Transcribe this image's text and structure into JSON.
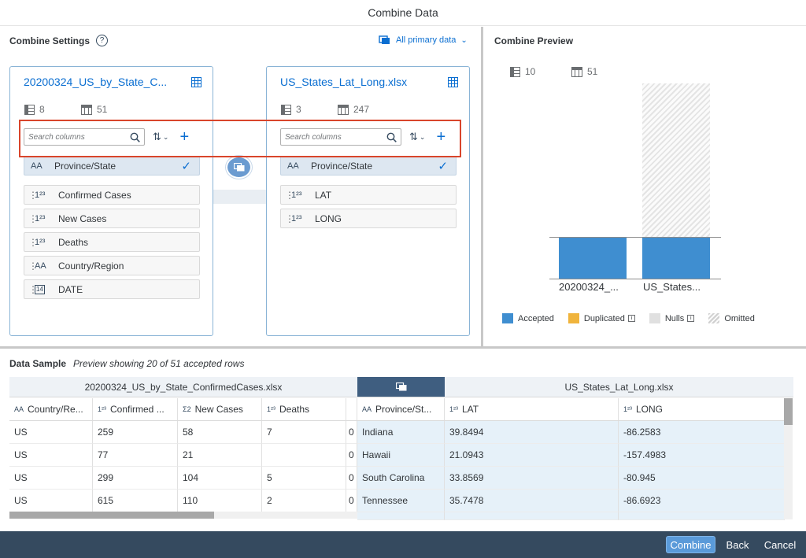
{
  "dialog": {
    "title": "Combine Data"
  },
  "settings": {
    "title": "Combine Settings",
    "help_icon": "question-icon",
    "primary_data_label": "All primary data"
  },
  "left_card": {
    "title": "20200324_US_by_State_C...",
    "dimensions": "8",
    "measures": "51",
    "search_placeholder": "Search columns",
    "columns": [
      {
        "type": "AA",
        "label": "Province/State",
        "selected": true
      },
      {
        "type": "1²³",
        "label": "Confirmed Cases"
      },
      {
        "type": "1²³",
        "label": "New Cases"
      },
      {
        "type": "1²³",
        "label": "Deaths"
      },
      {
        "type": "AA",
        "label": "Country/Region"
      },
      {
        "type": "14",
        "label": "DATE"
      }
    ]
  },
  "right_card": {
    "title": "US_States_Lat_Long.xlsx",
    "dimensions": "3",
    "measures": "247",
    "search_placeholder": "Search columns",
    "columns": [
      {
        "type": "AA",
        "label": "Province/State",
        "selected": true
      },
      {
        "type": "1²³",
        "label": "LAT"
      },
      {
        "type": "1²³",
        "label": "LONG"
      }
    ]
  },
  "preview": {
    "title": "Combine Preview",
    "dimensions": "10",
    "measures": "51",
    "bars": [
      {
        "label": "20200324_...",
        "accepted": 1.0,
        "omitted": 0
      },
      {
        "label": "US_States...",
        "accepted": 0.206,
        "omitted": 0.794
      }
    ],
    "legend": [
      "Accepted",
      "Duplicated",
      "Nulls",
      "Omitted"
    ],
    "colors": {
      "accepted": "#3f8ed0",
      "duplicated": "#f0b43c",
      "nulls": "#e0e0e0",
      "omitted": "#d8d8d8"
    }
  },
  "data_sample": {
    "title": "Data Sample",
    "subtitle": "Preview showing 20 of 51 accepted rows",
    "left_group": "20200324_US_by_State_ConfirmedCases.xlsx",
    "right_group": "US_States_Lat_Long.xlsx",
    "headers": [
      "Country/Re...",
      "Confirmed ...",
      "New Cases",
      "Deaths",
      "",
      "Province/St...",
      "LAT",
      "LONG"
    ],
    "header_types": [
      "AA",
      "1²³",
      "Σ2",
      "1²³",
      "",
      "AA",
      "1²³",
      "1²³"
    ],
    "rows": [
      [
        "US",
        "259",
        "58",
        "7",
        "0",
        "Indiana",
        "39.8494",
        "-86.2583"
      ],
      [
        "US",
        "77",
        "21",
        "",
        "0",
        "Hawaii",
        "21.0943",
        "-157.4983"
      ],
      [
        "US",
        "299",
        "104",
        "5",
        "0",
        "South Carolina",
        "33.8569",
        "-80.945"
      ],
      [
        "US",
        "615",
        "110",
        "2",
        "0",
        "Tennessee",
        "35.7478",
        "-86.6923"
      ]
    ]
  },
  "footer": {
    "combine": "Combine",
    "back": "Back",
    "cancel": "Cancel"
  }
}
